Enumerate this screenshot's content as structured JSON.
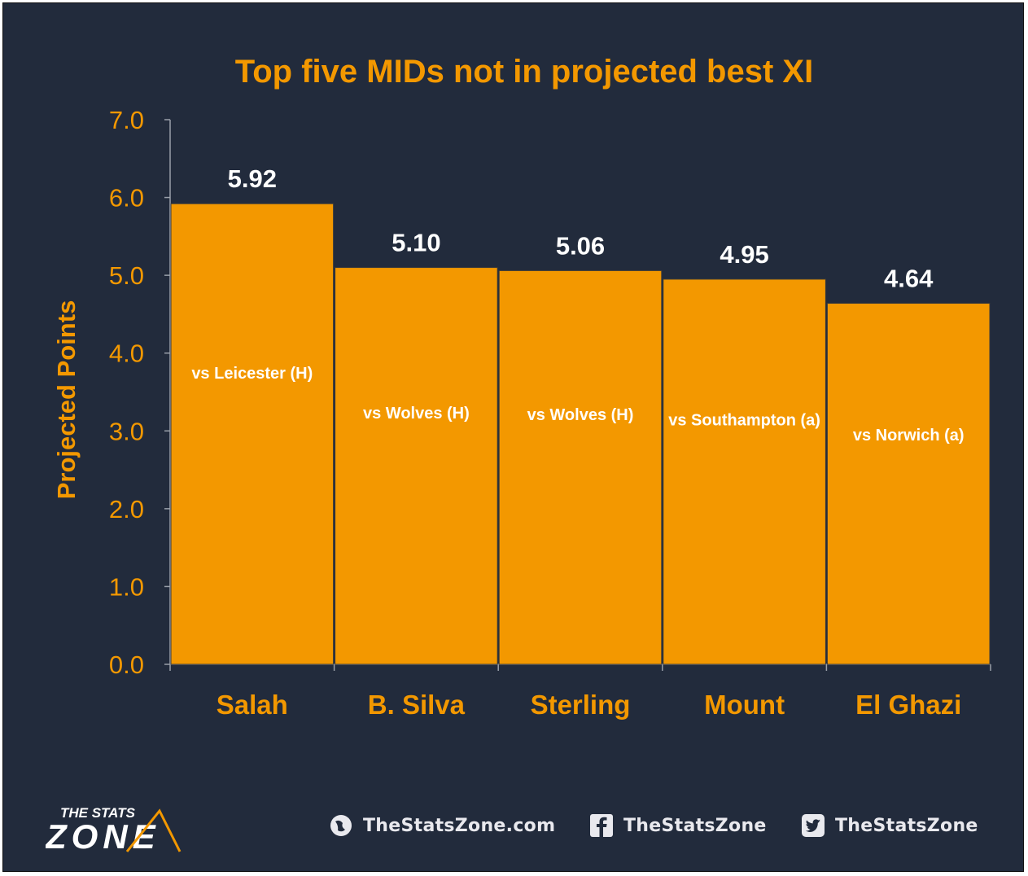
{
  "chart_data": {
    "type": "bar",
    "title": "Top five MIDs not in projected best XI",
    "ylabel": "Projected Points",
    "ylim": [
      0,
      7
    ],
    "yticks": [
      "0.0",
      "1.0",
      "2.0",
      "3.0",
      "4.0",
      "5.0",
      "6.0",
      "7.0"
    ],
    "categories": [
      "Salah",
      "B. Silva",
      "Sterling",
      "Mount",
      "El Ghazi"
    ],
    "values": [
      5.92,
      5.1,
      5.06,
      4.95,
      4.64
    ],
    "value_labels": [
      "5.92",
      "5.10",
      "5.06",
      "4.95",
      "4.64"
    ],
    "fixtures": [
      "vs Leicester (H)",
      "vs Wolves (H)",
      "vs Wolves (H)",
      "vs Southampton (a)",
      "vs Norwich (a)"
    ],
    "grid": false,
    "colors": {
      "bar": "#f39800",
      "background": "#222b3c",
      "text_accent": "#f39800",
      "value_text": "#ffffff"
    }
  },
  "footer": {
    "logo_line1": "THE STATS",
    "logo_line2": "ZONE",
    "website": "TheStatsZone.com",
    "facebook": "TheStatsZone",
    "twitter": "TheStatsZone",
    "website_icon": "globe-icon",
    "facebook_icon": "facebook-icon",
    "twitter_icon": "twitter-icon"
  }
}
